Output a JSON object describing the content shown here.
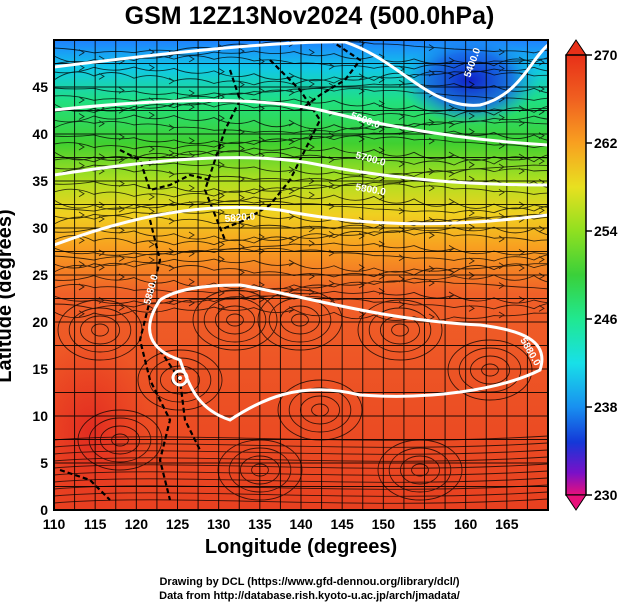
{
  "title": "GSM 12Z13Nov2024 (500.0hPa)",
  "axes": {
    "xlabel": "Longitude (degrees)",
    "ylabel": "Latitude  (degrees)",
    "xticks": [
      "110",
      "115",
      "120",
      "125",
      "130",
      "135",
      "140",
      "145",
      "150",
      "155",
      "160",
      "165"
    ],
    "yticks": [
      "0",
      "5",
      "10",
      "15",
      "20",
      "25",
      "30",
      "35",
      "40",
      "45"
    ],
    "xlim": [
      110,
      170
    ],
    "ylim": [
      0,
      50
    ]
  },
  "colorbar": {
    "ticks": [
      "270",
      "262",
      "254",
      "246",
      "238",
      "230"
    ],
    "range": [
      230,
      270
    ],
    "colors": [
      "#e8107a",
      "#7a10c8",
      "#1438d8",
      "#1890f0",
      "#18e0e8",
      "#20e890",
      "#3ad03a",
      "#90e020",
      "#e8e020",
      "#f8a020",
      "#f06020",
      "#e83018"
    ]
  },
  "contour_labels": [
    "5400.0",
    "5600.0",
    "5700.0",
    "5800.0",
    "5820.0",
    "5880.0",
    "5880.0"
  ],
  "credits": {
    "line1": "Drawing by DCL (https://www.gfd-dennou.org/library/dcl/)",
    "line2": "Data from http://database.rish.kyoto-u.ac.jp/arch/jmadata/"
  }
}
